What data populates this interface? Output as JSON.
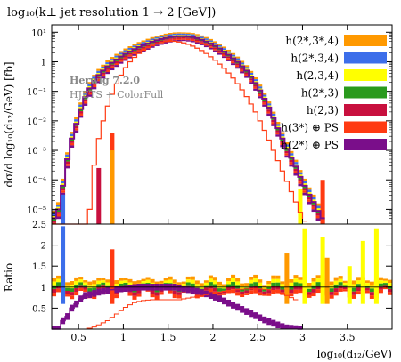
{
  "chart_data": {
    "type": "bar",
    "title": "log₁₀(k⊥ jet resolution 1 → 2 [GeV])",
    "ylabel_main": "dσ/d log₁₀(d₁₂/GeV) [fb]",
    "ylabel_ratio": "Ratio",
    "xlabel": "log₁₀(d₁₂/GeV)",
    "annotation_1": "Herwig 7.2.0",
    "annotation_2": "HJETS + ColorFull",
    "xlim": [
      0.2,
      4.0
    ],
    "ylim_main_log10": [
      -5.5,
      1.25
    ],
    "ylim_ratio": [
      0,
      2.5
    ],
    "x_ticks": [
      {
        "v": 0.5,
        "t": "0.5"
      },
      {
        "v": 1,
        "t": "1"
      },
      {
        "v": 1.5,
        "t": "1.5"
      },
      {
        "v": 2,
        "t": "2"
      },
      {
        "v": 2.5,
        "t": "2.5"
      },
      {
        "v": 3,
        "t": "3"
      },
      {
        "v": 3.5,
        "t": "3.5"
      }
    ],
    "y_ticks_main": [
      {
        "e": 1,
        "t": "10¹"
      },
      {
        "e": 0,
        "t": "1"
      },
      {
        "e": -1,
        "t": "10⁻¹"
      },
      {
        "e": -2,
        "t": "10⁻²"
      },
      {
        "e": -3,
        "t": "10⁻³"
      },
      {
        "e": -4,
        "t": "10⁻⁴"
      },
      {
        "e": -5,
        "t": "10⁻⁵"
      }
    ],
    "y_ticks_ratio": [
      {
        "v": 0.5,
        "t": "0.5"
      },
      {
        "v": 1,
        "t": "1"
      },
      {
        "v": 1.5,
        "t": "1.5"
      },
      {
        "v": 2,
        "t": "2"
      },
      {
        "v": 2.5,
        "t": "2.5"
      }
    ],
    "series": [
      {
        "name": "h(2*,3*,4)",
        "color": "#ff9900"
      },
      {
        "name": "h(2*,3,4)",
        "color": "#3c6eea"
      },
      {
        "name": "h(2,3,4)",
        "color": "#ffff00"
      },
      {
        "name": "h(2*,3)",
        "color": "#2a9a1d"
      },
      {
        "name": "h(2,3)",
        "color": "#c8103e"
      },
      {
        "name": "h(3*) ⊕ PS",
        "color": "#ff3a12"
      },
      {
        "name": "h(2*) ⊕ PS",
        "color": "#7a0e8a"
      }
    ],
    "x_edges": [
      0.2,
      0.25,
      0.3,
      0.35,
      0.4,
      0.45,
      0.5,
      0.55,
      0.6,
      0.65,
      0.7,
      0.75,
      0.8,
      0.85,
      0.9,
      0.95,
      1.0,
      1.05,
      1.1,
      1.15,
      1.2,
      1.25,
      1.3,
      1.35,
      1.4,
      1.45,
      1.5,
      1.55,
      1.6,
      1.65,
      1.7,
      1.75,
      1.8,
      1.85,
      1.9,
      1.95,
      2.0,
      2.05,
      2.1,
      2.15,
      2.2,
      2.25,
      2.3,
      2.35,
      2.4,
      2.45,
      2.5,
      2.55,
      2.6,
      2.65,
      2.7,
      2.75,
      2.8,
      2.85,
      2.9,
      2.95,
      3.0,
      3.05,
      3.1,
      3.15,
      3.2,
      3.25,
      3.3,
      3.35,
      3.4,
      3.45,
      3.5,
      3.55,
      3.6,
      3.65,
      3.7,
      3.75,
      3.8,
      3.85,
      3.9,
      3.95,
      4.0
    ],
    "purple_line_log10": [
      -5.3,
      -5.0,
      -4.2,
      -3.3,
      -2.6,
      -2.1,
      -1.6,
      -1.2,
      -0.9,
      -0.65,
      -0.45,
      -0.3,
      -0.15,
      -0.03,
      0.08,
      0.18,
      0.27,
      0.35,
      0.43,
      0.5,
      0.56,
      0.62,
      0.68,
      0.73,
      0.77,
      0.81,
      0.84,
      0.86,
      0.87,
      0.87,
      0.86,
      0.84,
      0.8,
      0.75,
      0.69,
      0.62,
      0.54,
      0.45,
      0.35,
      0.24,
      0.12,
      0.0,
      -0.15,
      -0.3,
      -0.5,
      -0.72,
      -0.97,
      -1.25,
      -1.55,
      -1.9,
      -2.25,
      -2.6,
      -2.95,
      -3.25,
      -3.55,
      -3.9,
      -4.2,
      -4.5,
      -4.75,
      -5.05,
      -5.3
    ],
    "red_line_log10": [
      -5.6,
      -5.6,
      -5.6,
      -5.6,
      -5.6,
      -5.6,
      -5.6,
      -5.6,
      -5.0,
      -3.5,
      -2.6,
      -2.0,
      -1.5,
      -1.1,
      -0.75,
      -0.45,
      -0.2,
      0.0,
      0.15,
      0.28,
      0.39,
      0.48,
      0.55,
      0.61,
      0.65,
      0.68,
      0.69,
      0.69,
      0.67,
      0.64,
      0.59,
      0.53,
      0.46,
      0.38,
      0.28,
      0.17,
      0.05,
      -0.08,
      -0.22,
      -0.38,
      -0.55,
      -0.74,
      -0.95,
      -1.18,
      -1.43,
      -1.7,
      -2.0,
      -2.32,
      -2.65,
      -3.0,
      -3.35,
      -3.7,
      -4.05,
      -4.4,
      -4.75,
      -5.1,
      -5.4
    ],
    "purple_ratio": [
      0.0,
      0.0,
      0.2,
      0.3,
      0.5,
      0.6,
      0.72,
      0.8,
      0.82,
      0.85,
      0.88,
      0.9,
      0.92,
      0.94,
      0.95,
      0.96,
      0.97,
      0.98,
      0.99,
      1.0,
      1.0,
      1.0,
      1.0,
      1.0,
      1.0,
      1.0,
      1.0,
      1.0,
      0.98,
      0.96,
      0.94,
      0.92,
      0.9,
      0.87,
      0.84,
      0.8,
      0.76,
      0.72,
      0.67,
      0.62,
      0.57,
      0.52,
      0.47,
      0.42,
      0.37,
      0.32,
      0.27,
      0.22,
      0.18,
      0.14,
      0.1,
      0.06,
      0.03,
      0.02,
      0.01,
      0.0
    ],
    "red_ratio": [
      0.0,
      0.0,
      0.0,
      0.0,
      0.0,
      0.0,
      0.0,
      0.0,
      0.02,
      0.05,
      0.1,
      0.15,
      0.2,
      0.28,
      0.36,
      0.44,
      0.52,
      0.58,
      0.63,
      0.66,
      0.68,
      0.69,
      0.7,
      0.7,
      0.7,
      0.7,
      0.7,
      0.7,
      0.7,
      0.72,
      0.74,
      0.76,
      0.78,
      0.8,
      0.82,
      0.84,
      0.86,
      0.88,
      0.9,
      0.92,
      0.93,
      0.94,
      0.95,
      0.96,
      0.96,
      0.96,
      0.96,
      0.95,
      0.94,
      0.92,
      0.9,
      0.85,
      0.8,
      0.75,
      0.7
    ],
    "spike_bars": [
      {
        "x0": 0.7,
        "x1": 0.75,
        "log10": -3.6,
        "color": "#c8103e"
      },
      {
        "x0": 0.85,
        "x1": 0.9,
        "log10": -2.4,
        "color": "#ff3a12"
      },
      {
        "x0": 0.85,
        "x1": 0.9,
        "log10": -3.0,
        "color": "#ff9900"
      },
      {
        "x0": 0.3,
        "x1": 0.35,
        "log10": -4.5,
        "color": "#3c6eea"
      },
      {
        "x0": 3.2,
        "x1": 3.25,
        "log10": -4.0,
        "color": "#ff3a12"
      },
      {
        "x0": 2.95,
        "x1": 3.0,
        "log10": -4.3,
        "color": "#ffff00"
      }
    ],
    "ratio_spikes": [
      {
        "x0": 0.3,
        "x1": 0.35,
        "v": 2.45,
        "color": "#3c6eea"
      },
      {
        "x0": 0.85,
        "x1": 0.9,
        "v": 1.9,
        "color": "#ff3a12"
      },
      {
        "x0": 2.8,
        "x1": 2.85,
        "v": 1.8,
        "color": "#ff9900"
      },
      {
        "x0": 3.0,
        "x1": 3.05,
        "v": 2.4,
        "color": "#ffff00"
      },
      {
        "x0": 3.2,
        "x1": 3.25,
        "v": 2.2,
        "color": "#ffff00"
      },
      {
        "x0": 3.25,
        "x1": 3.3,
        "v": 1.7,
        "color": "#ff9900"
      },
      {
        "x0": 3.5,
        "x1": 3.55,
        "v": 1.5,
        "color": "#ffff00"
      },
      {
        "x0": 3.65,
        "x1": 3.7,
        "v": 2.1,
        "color": "#ffff00"
      },
      {
        "x0": 3.8,
        "x1": 3.85,
        "v": 2.4,
        "color": "#ffff00"
      }
    ]
  }
}
